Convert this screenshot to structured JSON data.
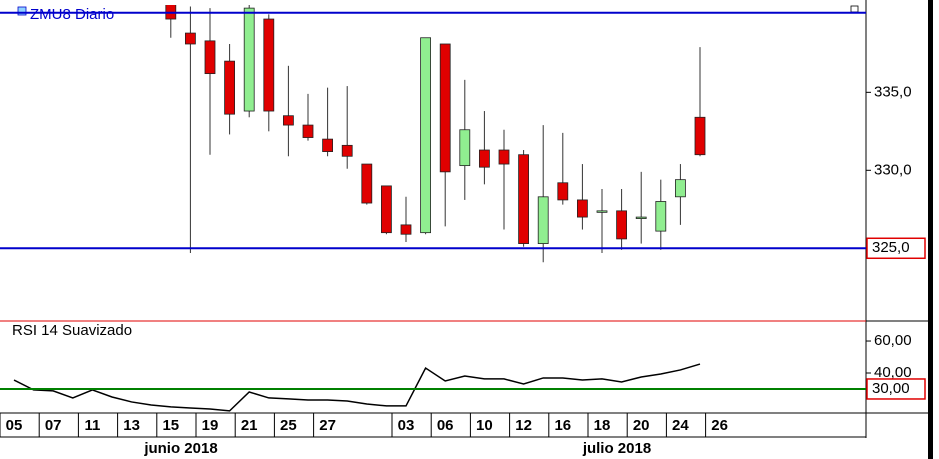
{
  "chart_data": [
    {
      "type": "candlestick",
      "title": "ZMU8 Diario",
      "categories": [
        "05",
        null,
        "07",
        null,
        "11",
        null,
        "13",
        null,
        "15",
        null,
        "19",
        null,
        "21",
        null,
        "25",
        null,
        "27",
        null,
        null,
        null,
        "03",
        null,
        "06",
        null,
        "10",
        null,
        "12",
        null,
        "16",
        null,
        "18",
        null,
        "20",
        null,
        "24",
        null,
        "26"
      ],
      "x_group_labels": [
        "junio 2018",
        "julio 2018"
      ],
      "open": [
        null,
        null,
        null,
        null,
        null,
        null,
        null,
        null,
        341.0,
        338.8,
        338.3,
        337.0,
        333.8,
        339.7,
        333.5,
        332.9,
        332.0,
        331.6,
        330.4,
        329.0,
        326.5,
        326.0,
        338.1,
        330.3,
        331.3,
        331.3,
        331.0,
        325.3,
        329.2,
        328.1,
        327.4,
        327.4,
        327.0,
        326.1,
        328.3,
        333.4,
        null
      ],
      "high": [
        null,
        null,
        null,
        null,
        null,
        null,
        null,
        null,
        342.0,
        340.5,
        340.4,
        338.1,
        340.6,
        340.0,
        336.7,
        334.9,
        335.3,
        335.4,
        330.4,
        329.0,
        328.3,
        338.5,
        338.1,
        335.8,
        333.8,
        332.6,
        331.3,
        332.9,
        332.4,
        330.4,
        328.8,
        328.8,
        329.9,
        329.4,
        330.4,
        337.9,
        null
      ],
      "low": [
        null,
        null,
        null,
        null,
        null,
        null,
        null,
        null,
        338.5,
        324.7,
        331.0,
        332.3,
        333.4,
        332.5,
        330.9,
        331.9,
        330.9,
        330.1,
        327.8,
        325.9,
        325.4,
        325.9,
        326.4,
        328.1,
        329.1,
        326.2,
        325.1,
        324.1,
        327.8,
        326.2,
        324.7,
        324.9,
        325.3,
        324.9,
        326.5,
        330.9,
        null
      ],
      "close": [
        null,
        null,
        null,
        null,
        null,
        null,
        null,
        null,
        339.7,
        338.1,
        336.2,
        333.6,
        340.4,
        333.8,
        332.9,
        332.1,
        331.2,
        330.9,
        327.9,
        326.0,
        325.9,
        338.5,
        329.9,
        332.6,
        330.2,
        330.4,
        325.3,
        328.3,
        328.1,
        327.0,
        327.4,
        325.6,
        327.0,
        328.0,
        329.4,
        331.0,
        null
      ],
      "up_color": "#90ee90",
      "down_color": "#e00000",
      "ylim": [
        320.4,
        340.6
      ],
      "yticks": [
        {
          "value": 330,
          "label": "330,0"
        },
        {
          "value": 335,
          "label": "335,0"
        }
      ],
      "hlines": [
        {
          "value": 340.1,
          "color": "#0000cc"
        },
        {
          "value": 325.0,
          "color": "#0000cc",
          "label": "325,0"
        }
      ]
    },
    {
      "type": "line",
      "title": "RSI 14 Suavizado",
      "values": [
        35.6,
        29.4,
        28.8,
        24.4,
        29.4,
        25,
        21.9,
        20,
        18.8,
        18.1,
        17.5,
        16.3,
        28.1,
        24.4,
        23.8,
        23.1,
        23.1,
        22.5,
        20.6,
        19.4,
        19.4,
        43.1,
        35,
        38.1,
        36.3,
        36.3,
        33.1,
        36.9,
        36.9,
        35.6,
        36.3,
        34.4,
        37.5,
        39.4,
        41.9,
        45.6,
        null
      ],
      "color": "#000000",
      "ylim": [
        15.6,
        71.9
      ],
      "yticks": [
        {
          "value": 60,
          "label": "60,00"
        },
        {
          "value": 40,
          "label": "40,00"
        }
      ],
      "hlines": [
        {
          "value": 30,
          "color": "#008000",
          "label": "30,00"
        }
      ]
    }
  ]
}
